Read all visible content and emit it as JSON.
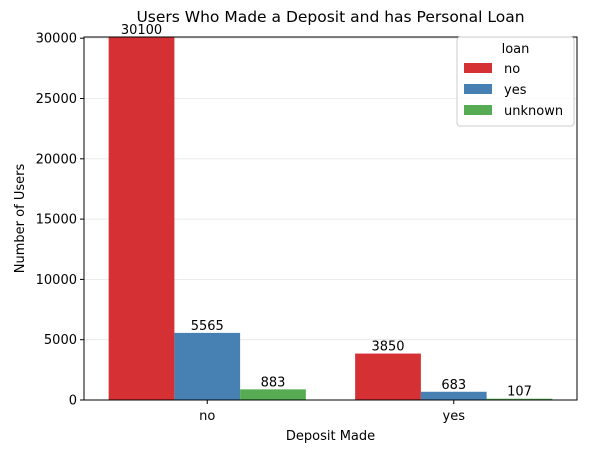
{
  "chart_data": {
    "type": "bar",
    "title": "Users Who Made a Deposit and has Personal Loan",
    "xlabel": "Deposit Made",
    "ylabel": "Number of Users",
    "categories": [
      "no",
      "yes"
    ],
    "series": [
      {
        "name": "no",
        "values": [
          30100,
          3850
        ],
        "color": "#d53034"
      },
      {
        "name": "yes",
        "values": [
          5565,
          683
        ],
        "color": "#4780b3"
      },
      {
        "name": "unknown",
        "values": [
          883,
          107
        ],
        "color": "#56ab53"
      }
    ],
    "ylim": [
      0,
      30100
    ],
    "yticks": [
      0,
      5000,
      10000,
      15000,
      20000,
      25000,
      30000
    ],
    "grid": "y",
    "legend": {
      "title": "loan",
      "placement": "top-right"
    }
  }
}
